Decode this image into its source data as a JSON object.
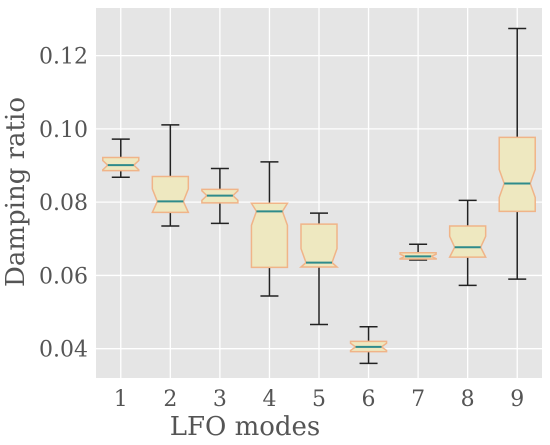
{
  "chart_data": {
    "type": "boxplot",
    "title": "",
    "xlabel": "LFO modes",
    "ylabel": "Damping ratio",
    "ylim": [
      0.032,
      0.133
    ],
    "yticks": [
      0.04,
      0.06,
      0.08,
      0.1,
      0.12
    ],
    "ytick_labels": [
      "0.04",
      "0.06",
      "0.08",
      "0.10",
      "0.12"
    ],
    "categories": [
      "1",
      "2",
      "3",
      "4",
      "5",
      "6",
      "7",
      "8",
      "9"
    ],
    "boxes": [
      {
        "label": "1",
        "whislo": 0.0868,
        "q1": 0.0886,
        "med": 0.0901,
        "q3": 0.0922,
        "whishi": 0.0972
      },
      {
        "label": "2",
        "whislo": 0.0735,
        "q1": 0.0772,
        "med": 0.0802,
        "q3": 0.087,
        "whishi": 0.1011
      },
      {
        "label": "3",
        "whislo": 0.0742,
        "q1": 0.0798,
        "med": 0.0818,
        "q3": 0.0835,
        "whishi": 0.0892
      },
      {
        "label": "4",
        "whislo": 0.0544,
        "q1": 0.0622,
        "med": 0.0775,
        "q3": 0.0797,
        "whishi": 0.091
      },
      {
        "label": "5",
        "whislo": 0.0466,
        "q1": 0.0623,
        "med": 0.0635,
        "q3": 0.074,
        "whishi": 0.077
      },
      {
        "label": "6",
        "whislo": 0.036,
        "q1": 0.0392,
        "med": 0.0405,
        "q3": 0.042,
        "whishi": 0.046
      },
      {
        "label": "7",
        "whislo": 0.0642,
        "q1": 0.0645,
        "med": 0.0652,
        "q3": 0.0662,
        "whishi": 0.0685
      },
      {
        "label": "8",
        "whislo": 0.0573,
        "q1": 0.065,
        "med": 0.0677,
        "q3": 0.0735,
        "whishi": 0.0805
      },
      {
        "label": "9",
        "whislo": 0.059,
        "q1": 0.0775,
        "med": 0.0851,
        "q3": 0.0977,
        "whishi": 0.1274
      }
    ],
    "notched": true,
    "grid": true,
    "style": {
      "background": "#e5e5e5",
      "grid_color": "#ffffff",
      "box_fill": "#eee8c0",
      "box_edge": "#f0b488",
      "median_color": "#2e8b8b",
      "whisker_color": "#222222",
      "text_color": "#555555"
    }
  }
}
